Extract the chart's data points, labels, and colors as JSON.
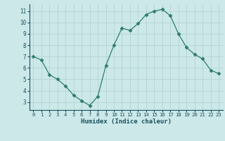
{
  "x": [
    0,
    1,
    2,
    3,
    4,
    5,
    6,
    7,
    8,
    9,
    10,
    11,
    12,
    13,
    14,
    15,
    16,
    17,
    18,
    19,
    20,
    21,
    22,
    23
  ],
  "y": [
    7.0,
    6.7,
    5.4,
    5.0,
    4.4,
    3.6,
    3.1,
    2.7,
    3.5,
    6.2,
    8.0,
    9.5,
    9.3,
    9.9,
    10.7,
    11.0,
    11.15,
    10.6,
    9.0,
    7.8,
    7.2,
    6.8,
    5.8,
    5.5
  ],
  "line_color": "#2e7d6e",
  "marker": "D",
  "marker_size": 2.5,
  "bg_color": "#cce8e8",
  "grid_color": "#b0d0d0",
  "xlabel": "Humidex (Indice chaleur)",
  "xlabel_color": "#1a5060",
  "tick_color": "#1a5060",
  "xlim": [
    -0.5,
    23.5
  ],
  "ylim": [
    2.3,
    11.6
  ],
  "yticks": [
    3,
    4,
    5,
    6,
    7,
    8,
    9,
    10,
    11
  ],
  "xticks": [
    0,
    1,
    2,
    3,
    4,
    5,
    6,
    7,
    8,
    9,
    10,
    11,
    12,
    13,
    14,
    15,
    16,
    17,
    18,
    19,
    20,
    21,
    22,
    23
  ]
}
